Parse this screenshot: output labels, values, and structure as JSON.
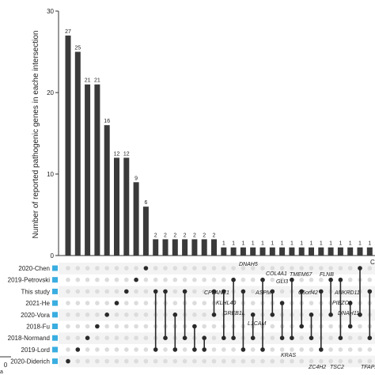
{
  "chart_data": {
    "type": "bar",
    "ylabel": "Number of reported pathogenic genes in eache intersection",
    "ylim": [
      0,
      30
    ],
    "yticks": [
      0,
      10,
      20,
      30
    ],
    "bar_color": "#3a3a3a",
    "values": [
      27,
      25,
      21,
      21,
      16,
      12,
      12,
      9,
      6,
      2,
      2,
      2,
      2,
      2,
      2,
      2,
      1,
      1,
      1,
      1,
      1,
      1,
      1,
      1,
      1,
      1,
      1,
      1,
      1,
      1,
      1,
      1,
      1
    ],
    "value_labels": [
      "27",
      "25",
      "21",
      "21",
      "16",
      "12",
      "12",
      "9",
      "6",
      "2",
      "2",
      "2",
      "2",
      "2",
      "2",
      "2",
      "1",
      "1",
      "1",
      "1",
      "1",
      "1",
      "1",
      "1",
      "1",
      "1",
      "1",
      "1",
      "1",
      "1",
      "1",
      "1",
      "1"
    ],
    "sets": [
      "2020-Chen",
      "2019-Petrovski",
      "This study",
      "2021-He",
      "2020-Vora",
      "2018-Fu",
      "2018-Normand",
      "2019-Lord",
      "2020-Diderich"
    ],
    "set_color": "#3aaee0",
    "set_size_axis_label": "0",
    "set_size_axis_suffix": "a",
    "intersections": [
      [
        8
      ],
      [
        7
      ],
      [
        6
      ],
      [
        5
      ],
      [
        4
      ],
      [
        3
      ],
      [
        2
      ],
      [
        1
      ],
      [
        0
      ],
      [
        2,
        7
      ],
      [
        2,
        6
      ],
      [
        4,
        7
      ],
      [
        2,
        6
      ],
      [
        5,
        7
      ],
      [
        6,
        7
      ],
      [
        2,
        4
      ],
      [
        2,
        6
      ],
      [
        1,
        6
      ],
      [
        2,
        7
      ],
      [
        4,
        6
      ],
      [
        1,
        7
      ],
      [
        2,
        4
      ],
      [
        3,
        6
      ],
      [
        1,
        6
      ],
      [
        2,
        5
      ],
      [
        4,
        6
      ],
      [
        2,
        7
      ],
      [
        1,
        4
      ],
      [
        1,
        6
      ],
      [
        3,
        5
      ],
      [
        0,
        4
      ],
      [
        2,
        6
      ],
      [
        4,
        7
      ]
    ],
    "gene_labels_upper": [
      "DNAH5",
      "COL4A1",
      "GLI3",
      "TMEM67",
      "FLNB",
      "CPLANE1",
      "ASPM",
      "C5orf42",
      "ANKRD11",
      "KLHL40",
      "PIEZO1",
      "GREB1L",
      "DNAH11",
      "L1CAM"
    ],
    "gene_labels_lower": [
      "KRAS",
      "ZC4H2",
      "TSC2",
      "TFAP2"
    ],
    "cut_label_right": "C"
  }
}
